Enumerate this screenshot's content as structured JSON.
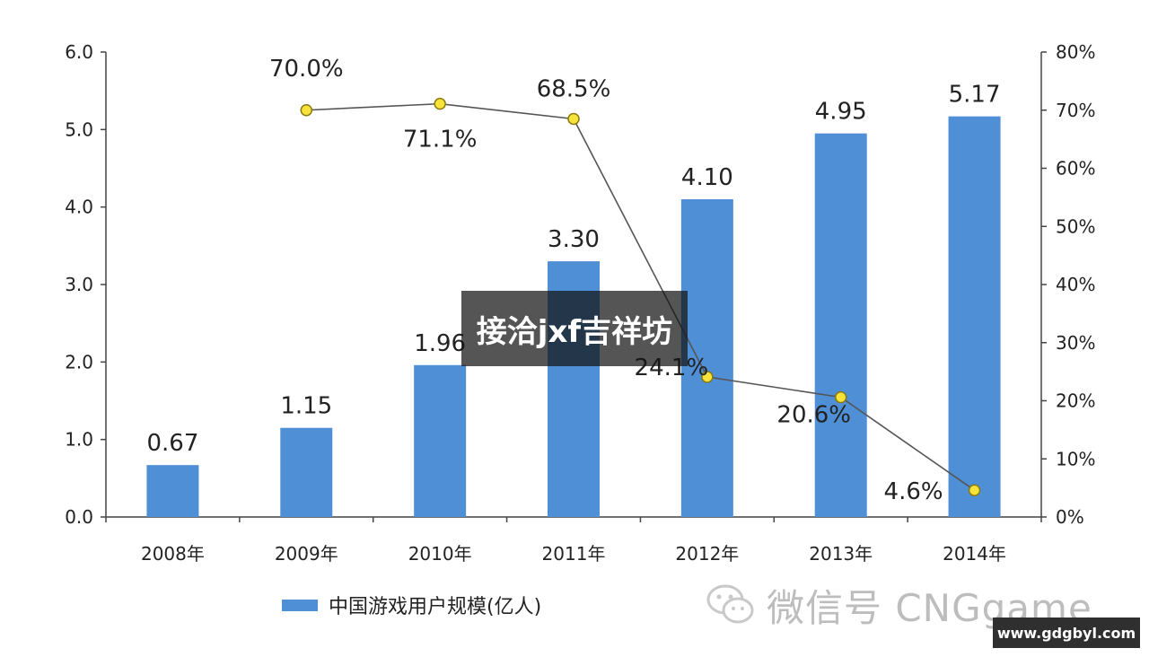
{
  "chart_data": {
    "type": "bar+line",
    "categories": [
      "2008年",
      "2009年",
      "2010年",
      "2011年",
      "2012年",
      "2013年",
      "2014年"
    ],
    "series": [
      {
        "name": "中国游戏用户规模(亿人)",
        "kind": "bar",
        "axis": "left",
        "values": [
          0.67,
          1.15,
          1.96,
          3.3,
          4.1,
          4.95,
          5.17
        ],
        "labels": [
          "0.67",
          "1.15",
          "1.96",
          "3.30",
          "4.10",
          "4.95",
          "5.17"
        ]
      },
      {
        "kind": "line",
        "axis": "right",
        "values": [
          null,
          70.0,
          71.1,
          68.5,
          24.1,
          20.6,
          4.6
        ],
        "labels": [
          "",
          "70.0%",
          "71.1%",
          "68.5%",
          "24.1%",
          "20.6%",
          "4.6%"
        ]
      }
    ],
    "y_left": {
      "min": 0,
      "max": 6,
      "ticks": [
        "0.0",
        "1.0",
        "2.0",
        "3.0",
        "4.0",
        "5.0",
        "6.0"
      ]
    },
    "y_right": {
      "min": 0,
      "max": 80,
      "ticks": [
        "0%",
        "10%",
        "20%",
        "30%",
        "40%",
        "50%",
        "60%",
        "70%",
        "80%"
      ]
    },
    "legend": {
      "position": "bottom-left",
      "label": "中国游戏用户规模(亿人)"
    },
    "grid": false,
    "colors": {
      "bar": "#4f8fd6",
      "line": "#555555",
      "marker_fill": "#f7e33a",
      "marker_stroke": "#8a7a10"
    }
  },
  "overlay": {
    "banner_text": "接洽jxf吉祥坊"
  },
  "watermark": {
    "wechat_text": "微信号 CNGgame",
    "wechat_icon": "wechat-icon"
  },
  "url_badge": {
    "text": "www.gdgbyl.com"
  }
}
